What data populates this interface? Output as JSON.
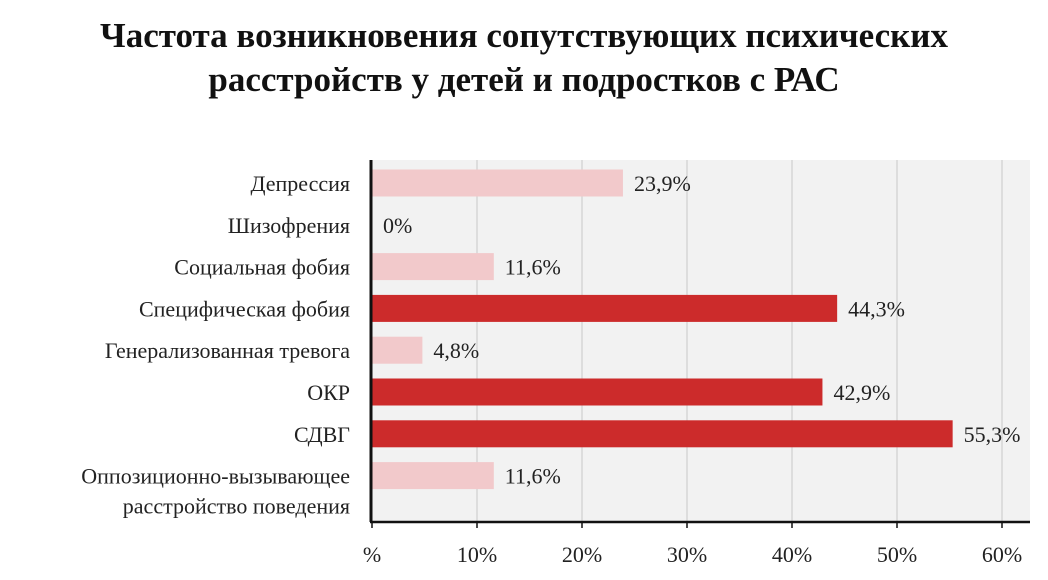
{
  "chart_data": {
    "type": "bar",
    "orientation": "horizontal",
    "title_lines": [
      "Частота возникновения сопутствующих психических",
      "расстройств у детей и подростков с РАС"
    ],
    "categories": [
      [
        "Депрессия"
      ],
      [
        "Шизофрения"
      ],
      [
        "Социальная фобия"
      ],
      [
        "Специфическая фобия"
      ],
      [
        "Генерализованная тревога"
      ],
      [
        "ОКР"
      ],
      [
        "СДВГ"
      ],
      [
        "Оппозиционно-вызывающее",
        "расстройство поведения"
      ]
    ],
    "values": [
      23.9,
      0,
      11.6,
      44.3,
      4.8,
      42.9,
      55.3,
      11.6
    ],
    "value_labels": [
      "23,9%",
      "0%",
      "11,6%",
      "44,3%",
      "4,8%",
      "42,9%",
      "55,3%",
      "11,6%"
    ],
    "highlight": [
      false,
      false,
      false,
      true,
      false,
      true,
      true,
      false
    ],
    "xlim": [
      0,
      60
    ],
    "x_ticks": [
      0,
      10,
      20,
      30,
      40,
      50,
      60
    ],
    "x_tick_labels": [
      "%",
      "10%",
      "20%",
      "30%",
      "40%",
      "50%",
      "60%"
    ],
    "xlabel": "",
    "ylabel": "",
    "grid": "vertical",
    "colors": {
      "highlight": "#cc2b2b",
      "normal": "#f2c9cb",
      "plot_background": "#f2f2f2",
      "grid": "#d6d6d6",
      "axis": "#111111"
    }
  }
}
